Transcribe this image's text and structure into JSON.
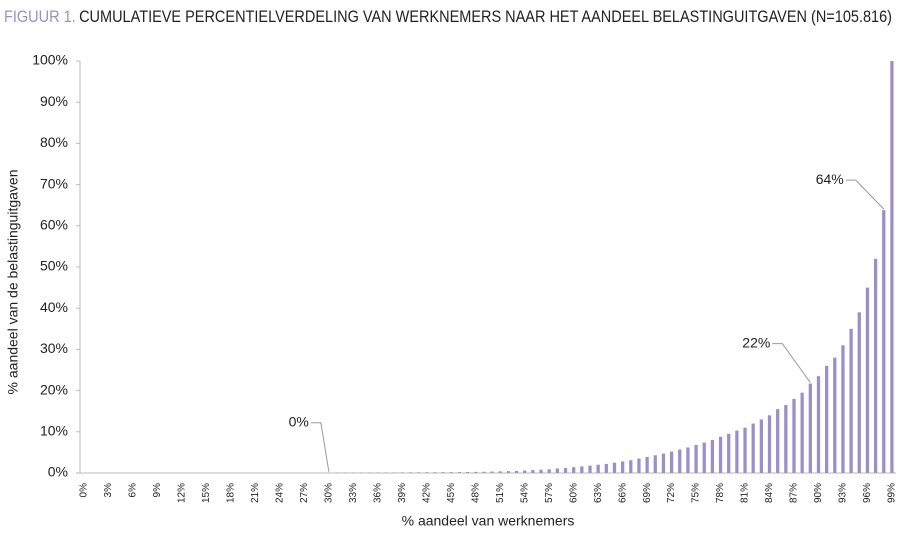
{
  "chart_data": {
    "type": "bar",
    "figure_label": "FIGUUR 1.",
    "title": "CUMULATIEVE PERCENTIELVERDELING VAN WERKNEMERS NAAR HET AANDEEL BELASTINGUITGAVEN (N=105.816)",
    "x_label": "% aandeel van werknemers",
    "y_label": "% aandeel van de belastinguitgaven",
    "color": "#9b8fc7",
    "categories": [
      "0%",
      null,
      null,
      "3%",
      null,
      null,
      "6%",
      null,
      null,
      "9%",
      null,
      null,
      "12%",
      null,
      null,
      "15%",
      null,
      null,
      "18%",
      null,
      null,
      "21%",
      null,
      null,
      "24%",
      null,
      null,
      "27%",
      null,
      null,
      "30%",
      null,
      null,
      "33%",
      null,
      null,
      "36%",
      null,
      null,
      "39%",
      null,
      null,
      "42%",
      null,
      null,
      "45%",
      null,
      null,
      "48%",
      null,
      null,
      "51%",
      null,
      null,
      "54%",
      null,
      null,
      "57%",
      null,
      null,
      "60%",
      null,
      null,
      "63%",
      null,
      null,
      "66%",
      null,
      null,
      "69%",
      null,
      null,
      "72%",
      null,
      null,
      "75%",
      null,
      null,
      "78%",
      null,
      null,
      "81%",
      null,
      null,
      "84%",
      null,
      null,
      "87%",
      null,
      null,
      "90%",
      null,
      null,
      "93%",
      null,
      null,
      "96%",
      null,
      null,
      "99%"
    ],
    "values": [
      0,
      0,
      0,
      0,
      0,
      0,
      0,
      0,
      0,
      0,
      0,
      0,
      0,
      0,
      0,
      0,
      0,
      0,
      0,
      0,
      0,
      0,
      0,
      0,
      0,
      0,
      0,
      0,
      0,
      0,
      0.05,
      0.06,
      0.07,
      0.08,
      0.09,
      0.1,
      0.11,
      0.12,
      0.13,
      0.14,
      0.15,
      0.16,
      0.17,
      0.18,
      0.19,
      0.2,
      0.22,
      0.24,
      0.27,
      0.3,
      0.35,
      0.4,
      0.45,
      0.5,
      0.6,
      0.7,
      0.8,
      0.9,
      1.1,
      1.2,
      1.4,
      1.6,
      1.8,
      2.0,
      2.2,
      2.5,
      2.8,
      3.1,
      3.5,
      3.9,
      4.3,
      4.7,
      5.2,
      5.7,
      6.2,
      6.8,
      7.4,
      8.0,
      8.8,
      9.5,
      10.3,
      11.0,
      12.0,
      13.0,
      14.0,
      15.5,
      16.5,
      18.0,
      19.5,
      21.7,
      23.5,
      26.0,
      28.0,
      31.0,
      35.0,
      39.0,
      45.0,
      52.0,
      63.8,
      100
    ],
    "value_labels": [
      null,
      null,
      null,
      null,
      null,
      null,
      null,
      null,
      null,
      null,
      null,
      null,
      null,
      null,
      null,
      null,
      null,
      null,
      null,
      null,
      null,
      null,
      null,
      null,
      null,
      null,
      null,
      null,
      null,
      null,
      "0%",
      null,
      null,
      null,
      null,
      null,
      null,
      null,
      null,
      null,
      null,
      null,
      null,
      null,
      null,
      null,
      null,
      null,
      null,
      null,
      null,
      null,
      null,
      null,
      null,
      null,
      null,
      null,
      null,
      null,
      null,
      null,
      null,
      null,
      null,
      null,
      null,
      null,
      null,
      null,
      null,
      null,
      null,
      null,
      null,
      null,
      null,
      null,
      null,
      null,
      null,
      null,
      null,
      null,
      null,
      null,
      null,
      null,
      null,
      "22%",
      null,
      null,
      null,
      null,
      null,
      null,
      null,
      null,
      "64%",
      null
    ],
    "ylim": [
      0,
      100
    ],
    "yticks": [
      {
        "value": 0,
        "label": "0%"
      },
      {
        "value": 10,
        "label": "10%"
      },
      {
        "value": 20,
        "label": "20%"
      },
      {
        "value": 30,
        "label": "30%"
      },
      {
        "value": 40,
        "label": "40%"
      },
      {
        "value": 50,
        "label": "50%"
      },
      {
        "value": 60,
        "label": "60%"
      },
      {
        "value": 70,
        "label": "70%"
      },
      {
        "value": 80,
        "label": "80%"
      },
      {
        "value": 90,
        "label": "90%"
      },
      {
        "value": 100,
        "label": "100%"
      }
    ],
    "grid": false
  }
}
